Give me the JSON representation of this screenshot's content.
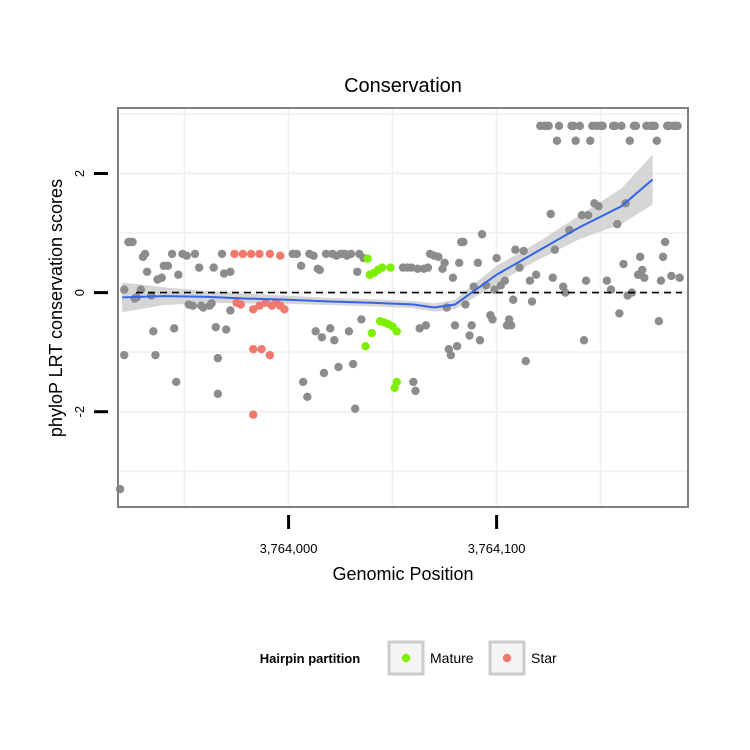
{
  "chart_data": {
    "type": "scatter",
    "title": "Conservation",
    "xlabel": "Genomic Position",
    "ylabel": "phyloP LRT conservation scores",
    "x_ticks": [
      {
        "value": 3764000,
        "label": "3,764,000"
      },
      {
        "value": 3764100,
        "label": "3,764,100"
      }
    ],
    "y_ticks": [
      {
        "value": -2,
        "label": "-2"
      },
      {
        "value": 0,
        "label": "0"
      },
      {
        "value": 2,
        "label": "2"
      }
    ],
    "xlim": [
      3763918,
      3764192
    ],
    "ylim": [
      -3.6,
      3.1
    ],
    "reference_line": {
      "y": 0,
      "style": "dashed"
    },
    "legend": {
      "title": "Hairpin partition",
      "placement": "bottom",
      "entries": [
        {
          "name": "Mature",
          "color": "#7cf000"
        },
        {
          "name": "Star",
          "color": "#f0786c"
        }
      ]
    },
    "colors": {
      "other": "#8c8c8c",
      "mature": "#7cf000",
      "star": "#f0786c",
      "smooth": "#3464e8",
      "band": "#c8c8c8",
      "panel_border": "#808080",
      "grid": "#f2f2f2"
    },
    "series": [
      {
        "name": "Mature",
        "color": "#7cf000",
        "points": [
          [
            3764038,
            0.57
          ],
          [
            3764039,
            0.3
          ],
          [
            3764041,
            0.33
          ],
          [
            3764043,
            0.38
          ],
          [
            3764045,
            0.42
          ],
          [
            3764049,
            0.42
          ],
          [
            3764037,
            -0.9
          ],
          [
            3764040,
            -0.68
          ],
          [
            3764044,
            -0.48
          ],
          [
            3764046,
            -0.5
          ],
          [
            3764048,
            -0.53
          ],
          [
            3764050,
            -0.57
          ],
          [
            3764052,
            -0.65
          ],
          [
            3764052,
            -1.5
          ],
          [
            3764051,
            -1.6
          ]
        ]
      },
      {
        "name": "Star",
        "color": "#f0786c",
        "points": [
          [
            3763974,
            0.65
          ],
          [
            3763978,
            0.65
          ],
          [
            3763982,
            0.65
          ],
          [
            3763986,
            0.65
          ],
          [
            3763991,
            0.65
          ],
          [
            3763996,
            0.62
          ],
          [
            3763975,
            -0.17
          ],
          [
            3763977,
            -0.2
          ],
          [
            3763983,
            -0.28
          ],
          [
            3763986,
            -0.22
          ],
          [
            3763989,
            -0.17
          ],
          [
            3763992,
            -0.22
          ],
          [
            3763994,
            -0.17
          ],
          [
            3763996,
            -0.22
          ],
          [
            3763998,
            -0.28
          ],
          [
            3763983,
            -0.95
          ],
          [
            3763987,
            -0.95
          ],
          [
            3763991,
            -1.05
          ],
          [
            3763983,
            -2.05
          ]
        ]
      },
      {
        "name": "",
        "color": "#8c8c8c",
        "points": [
          [
            3763921,
            0.05
          ],
          [
            3763921,
            -1.05
          ],
          [
            3763919,
            -3.3
          ],
          [
            3763923,
            0.85
          ],
          [
            3763924,
            0.85
          ],
          [
            3763925,
            0.85
          ],
          [
            3763926,
            -0.1
          ],
          [
            3763927,
            -0.08
          ],
          [
            3763929,
            0.05
          ],
          [
            3763930,
            0.6
          ],
          [
            3763931,
            0.65
          ],
          [
            3763932,
            0.35
          ],
          [
            3763934,
            -0.05
          ],
          [
            3763935,
            -0.65
          ],
          [
            3763936,
            -1.05
          ],
          [
            3763937,
            0.22
          ],
          [
            3763939,
            0.25
          ],
          [
            3763940,
            0.45
          ],
          [
            3763942,
            0.45
          ],
          [
            3763944,
            0.65
          ],
          [
            3763945,
            -0.6
          ],
          [
            3763946,
            -1.5
          ],
          [
            3763947,
            0.3
          ],
          [
            3763949,
            0.65
          ],
          [
            3763951,
            0.62
          ],
          [
            3763952,
            -0.2
          ],
          [
            3763954,
            -0.22
          ],
          [
            3763955,
            0.65
          ],
          [
            3763957,
            0.42
          ],
          [
            3763958,
            -0.22
          ],
          [
            3763959,
            -0.25
          ],
          [
            3763962,
            -0.22
          ],
          [
            3763963,
            -0.18
          ],
          [
            3763964,
            0.42
          ],
          [
            3763965,
            -0.58
          ],
          [
            3763966,
            -1.1
          ],
          [
            3763966,
            -1.7
          ],
          [
            3763968,
            0.65
          ],
          [
            3763969,
            0.32
          ],
          [
            3763970,
            -0.62
          ],
          [
            3763972,
            -0.3
          ],
          [
            3763972,
            0.35
          ],
          [
            3764002,
            0.65
          ],
          [
            3764004,
            0.65
          ],
          [
            3764006,
            0.45
          ],
          [
            3764007,
            -1.5
          ],
          [
            3764009,
            -1.75
          ],
          [
            3764010,
            0.65
          ],
          [
            3764012,
            0.62
          ],
          [
            3764013,
            -0.65
          ],
          [
            3764014,
            0.4
          ],
          [
            3764015,
            0.38
          ],
          [
            3764016,
            -0.75
          ],
          [
            3764017,
            -1.35
          ],
          [
            3764018,
            0.65
          ],
          [
            3764020,
            -0.6
          ],
          [
            3764021,
            0.65
          ],
          [
            3764022,
            -0.8
          ],
          [
            3764023,
            0.62
          ],
          [
            3764024,
            -1.25
          ],
          [
            3764025,
            0.65
          ],
          [
            3764026,
            0.65
          ],
          [
            3764027,
            0.65
          ],
          [
            3764028,
            0.62
          ],
          [
            3764029,
            -0.65
          ],
          [
            3764030,
            0.65
          ],
          [
            3764031,
            -1.2
          ],
          [
            3764032,
            -1.95
          ],
          [
            3764033,
            0.35
          ],
          [
            3764034,
            0.65
          ],
          [
            3764035,
            -0.45
          ],
          [
            3764036,
            0.58
          ],
          [
            3764055,
            0.42
          ],
          [
            3764057,
            0.42
          ],
          [
            3764059,
            0.42
          ],
          [
            3764060,
            -1.5
          ],
          [
            3764061,
            -1.65
          ],
          [
            3764062,
            0.4
          ],
          [
            3764063,
            -0.6
          ],
          [
            3764065,
            0.4
          ],
          [
            3764066,
            -0.55
          ],
          [
            3764067,
            0.42
          ],
          [
            3764068,
            0.65
          ],
          [
            3764070,
            0.62
          ],
          [
            3764072,
            0.6
          ],
          [
            3764074,
            0.4
          ],
          [
            3764075,
            0.5
          ],
          [
            3764076,
            -0.25
          ],
          [
            3764077,
            -0.95
          ],
          [
            3764078,
            -1.05
          ],
          [
            3764079,
            0.25
          ],
          [
            3764080,
            -0.55
          ],
          [
            3764081,
            -0.9
          ],
          [
            3764082,
            0.5
          ],
          [
            3764083,
            0.85
          ],
          [
            3764084,
            0.85
          ],
          [
            3764085,
            -0.2
          ],
          [
            3764087,
            -0.72
          ],
          [
            3764088,
            -0.55
          ],
          [
            3764089,
            0.1
          ],
          [
            3764091,
            0.5
          ],
          [
            3764092,
            -0.8
          ],
          [
            3764093,
            0.98
          ],
          [
            3764095,
            0.12
          ],
          [
            3764097,
            -0.38
          ],
          [
            3764098,
            -0.45
          ],
          [
            3764099,
            0.05
          ],
          [
            3764100,
            0.58
          ],
          [
            3764102,
            0.12
          ],
          [
            3764104,
            0.2
          ],
          [
            3764105,
            -0.55
          ],
          [
            3764106,
            -0.45
          ],
          [
            3764107,
            -0.55
          ],
          [
            3764108,
            -0.12
          ],
          [
            3764109,
            0.72
          ],
          [
            3764111,
            0.42
          ],
          [
            3764113,
            0.7
          ],
          [
            3764114,
            -1.15
          ],
          [
            3764116,
            0.2
          ],
          [
            3764117,
            -0.15
          ],
          [
            3764119,
            0.3
          ],
          [
            3764121,
            2.8
          ],
          [
            3764123,
            2.8
          ],
          [
            3764124,
            2.8
          ],
          [
            3764125,
            2.8
          ],
          [
            3764126,
            1.32
          ],
          [
            3764127,
            0.25
          ],
          [
            3764128,
            0.72
          ],
          [
            3764129,
            2.55
          ],
          [
            3764130,
            2.8
          ],
          [
            3764132,
            0.1
          ],
          [
            3764133,
            0.0
          ],
          [
            3764135,
            1.05
          ],
          [
            3764136,
            2.8
          ],
          [
            3764137,
            2.8
          ],
          [
            3764138,
            2.55
          ],
          [
            3764140,
            2.8
          ],
          [
            3764141,
            1.3
          ],
          [
            3764142,
            -0.8
          ],
          [
            3764143,
            0.2
          ],
          [
            3764144,
            1.3
          ],
          [
            3764145,
            2.55
          ],
          [
            3764146,
            2.8
          ],
          [
            3764147,
            1.5
          ],
          [
            3764148,
            2.8
          ],
          [
            3764149,
            1.45
          ],
          [
            3764150,
            2.8
          ],
          [
            3764151,
            2.8
          ],
          [
            3764153,
            0.2
          ],
          [
            3764155,
            0.05
          ],
          [
            3764156,
            2.8
          ],
          [
            3764157,
            2.8
          ],
          [
            3764158,
            1.15
          ],
          [
            3764159,
            -0.35
          ],
          [
            3764160,
            2.8
          ],
          [
            3764161,
            0.48
          ],
          [
            3764162,
            1.5
          ],
          [
            3764163,
            -0.05
          ],
          [
            3764164,
            2.55
          ],
          [
            3764165,
            0.0
          ],
          [
            3764166,
            2.8
          ],
          [
            3764167,
            2.8
          ],
          [
            3764168,
            0.3
          ],
          [
            3764169,
            0.6
          ],
          [
            3764170,
            0.38
          ],
          [
            3764171,
            0.25
          ],
          [
            3764172,
            2.8
          ],
          [
            3764174,
            2.8
          ],
          [
            3764175,
            2.8
          ],
          [
            3764176,
            2.8
          ],
          [
            3764177,
            2.55
          ],
          [
            3764178,
            -0.48
          ],
          [
            3764179,
            0.2
          ],
          [
            3764180,
            0.6
          ],
          [
            3764181,
            0.85
          ],
          [
            3764182,
            2.8
          ],
          [
            3764183,
            2.8
          ],
          [
            3764184,
            0.28
          ],
          [
            3764185,
            2.8
          ],
          [
            3764186,
            2.8
          ],
          [
            3764187,
            2.8
          ],
          [
            3764188,
            0.25
          ]
        ]
      }
    ],
    "smooth": {
      "name": "",
      "color": "#3464e8",
      "points": [
        [
          3763920,
          -0.08
        ],
        [
          3763940,
          -0.06
        ],
        [
          3763960,
          -0.07
        ],
        [
          3763980,
          -0.1
        ],
        [
          3764000,
          -0.12
        ],
        [
          3764020,
          -0.15
        ],
        [
          3764040,
          -0.17
        ],
        [
          3764060,
          -0.2
        ],
        [
          3764070,
          -0.25
        ],
        [
          3764080,
          -0.2
        ],
        [
          3764090,
          0.05
        ],
        [
          3764100,
          0.3
        ],
        [
          3764120,
          0.7
        ],
        [
          3764140,
          1.1
        ],
        [
          3764160,
          1.45
        ],
        [
          3764175,
          1.9
        ]
      ],
      "band_halfwidth": [
        0.25,
        0.15,
        0.1,
        0.08,
        0.07,
        0.06,
        0.06,
        0.06,
        0.07,
        0.08,
        0.12,
        0.15,
        0.15,
        0.2,
        0.3,
        0.42
      ]
    }
  }
}
